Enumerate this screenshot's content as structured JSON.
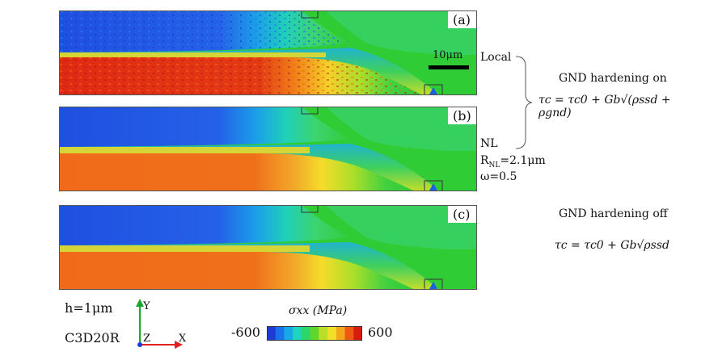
{
  "panels": [
    {
      "label": "(a)"
    },
    {
      "label": "(b)"
    },
    {
      "label": "(c)"
    }
  ],
  "scale_bar": "10μm",
  "annotations": {
    "local": "Local",
    "nl": "NL",
    "r_nl": "R",
    "r_nl_sub": "NL",
    "r_nl_val": "=2.1μm",
    "omega": "ω=0.5",
    "gnd_on": "GND hardening on",
    "gnd_on_eq": "τc = τc0 + Gb√(ρssd + ρgnd)",
    "gnd_off": "GND hardening off",
    "gnd_off_eq": "τc = τc0 + Gb√ρssd"
  },
  "info": {
    "thickness": "h=1μm",
    "element": "C3D20R"
  },
  "axes": {
    "y": "Y",
    "z": "Z",
    "x": "X"
  },
  "colorbar": {
    "title": "σxx (MPa)",
    "min": "-600",
    "max": "600",
    "colors": [
      "#1f3bd6",
      "#1872e8",
      "#18a8e8",
      "#1fd4c0",
      "#2ed66a",
      "#5fd62a",
      "#b8e02a",
      "#f0e02a",
      "#f2a81a",
      "#ee5a12",
      "#d81d10"
    ]
  }
}
